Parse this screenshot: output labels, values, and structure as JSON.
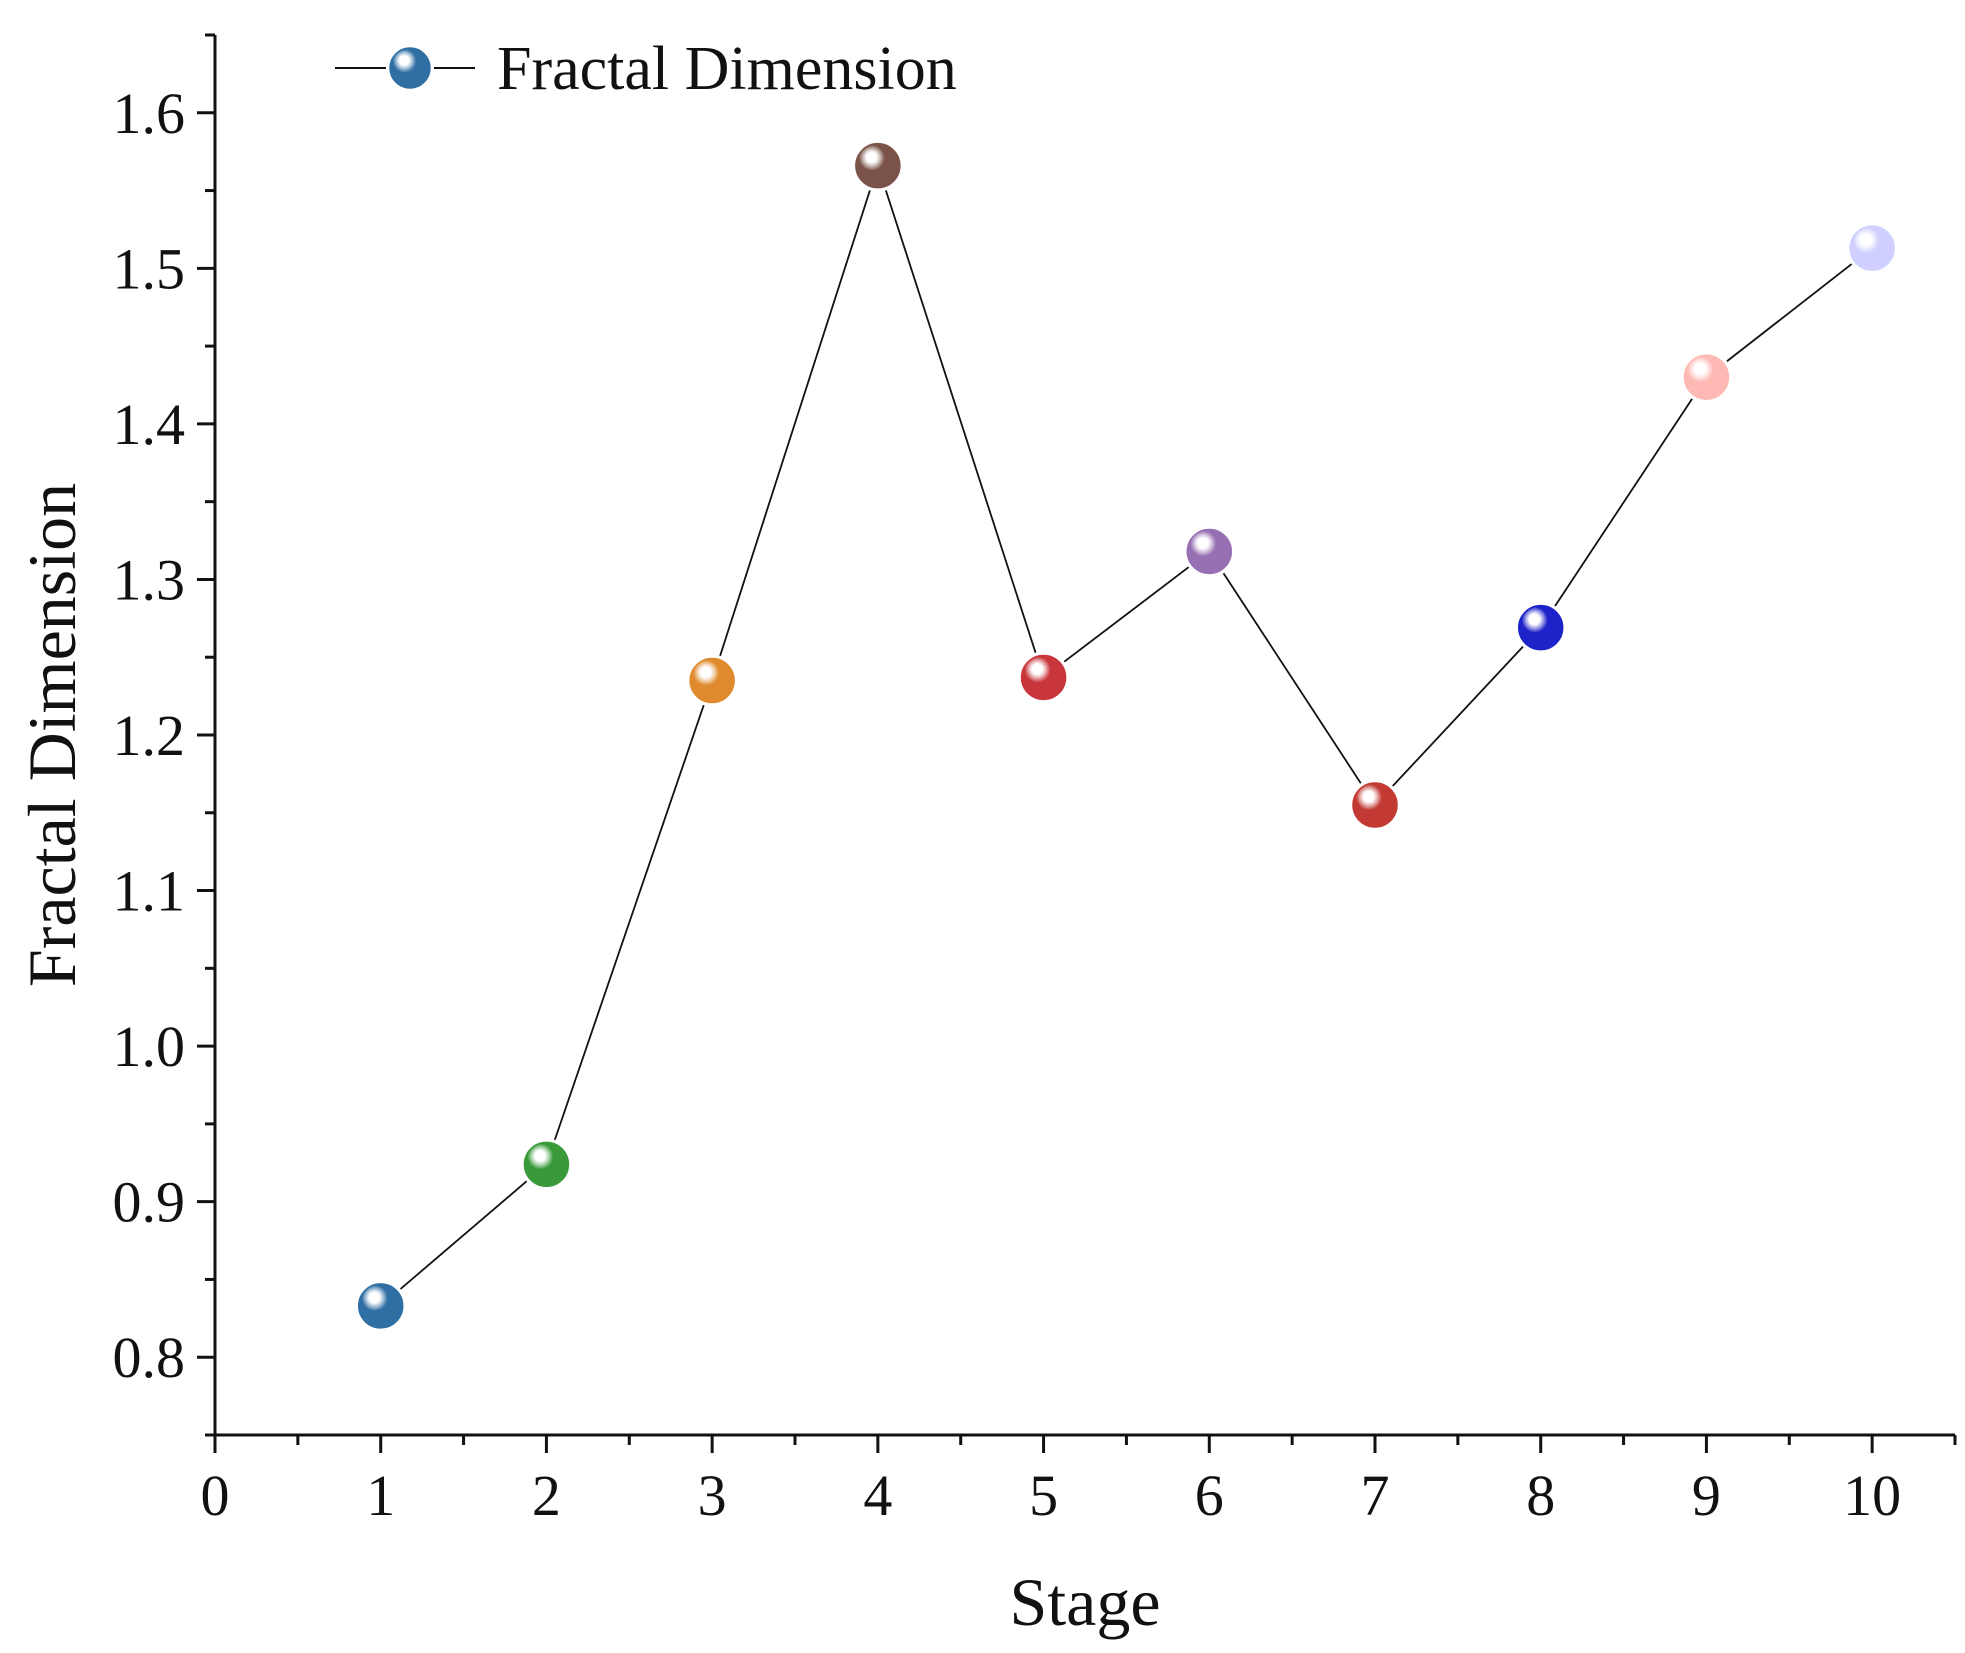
{
  "chart_data": {
    "type": "line",
    "xlabel": "Stage",
    "ylabel": "Fractal Dimension",
    "xlim": [
      0,
      10.5
    ],
    "ylim": [
      0.75,
      1.65
    ],
    "xticks": [
      0,
      1,
      2,
      3,
      4,
      5,
      6,
      7,
      8,
      9,
      10
    ],
    "yticks": [
      0.8,
      0.9,
      1.0,
      1.1,
      1.2,
      1.3,
      1.4,
      1.5,
      1.6
    ],
    "ytick_labels": [
      "0.8",
      "0.9",
      "1.0",
      "1.1",
      "1.2",
      "1.3",
      "1.4",
      "1.5",
      "1.6"
    ],
    "legend": {
      "position": "top-left",
      "entries": [
        "Fractal Dimension"
      ]
    },
    "grid": false,
    "series": [
      {
        "name": "Fractal Dimension",
        "x": [
          1,
          2,
          3,
          4,
          5,
          6,
          7,
          8,
          9,
          10
        ],
        "y": [
          0.833,
          0.924,
          1.235,
          1.566,
          1.237,
          1.318,
          1.155,
          1.269,
          1.43,
          1.513
        ],
        "line_color": "#111111",
        "point_colors": [
          "#2f6fa3",
          "#3a9a3a",
          "#e08a2e",
          "#7a5248",
          "#c8363c",
          "#9670b3",
          "#c23a33",
          "#1e22c9",
          "#ffb9b5",
          "#cfd0ff"
        ]
      }
    ]
  }
}
